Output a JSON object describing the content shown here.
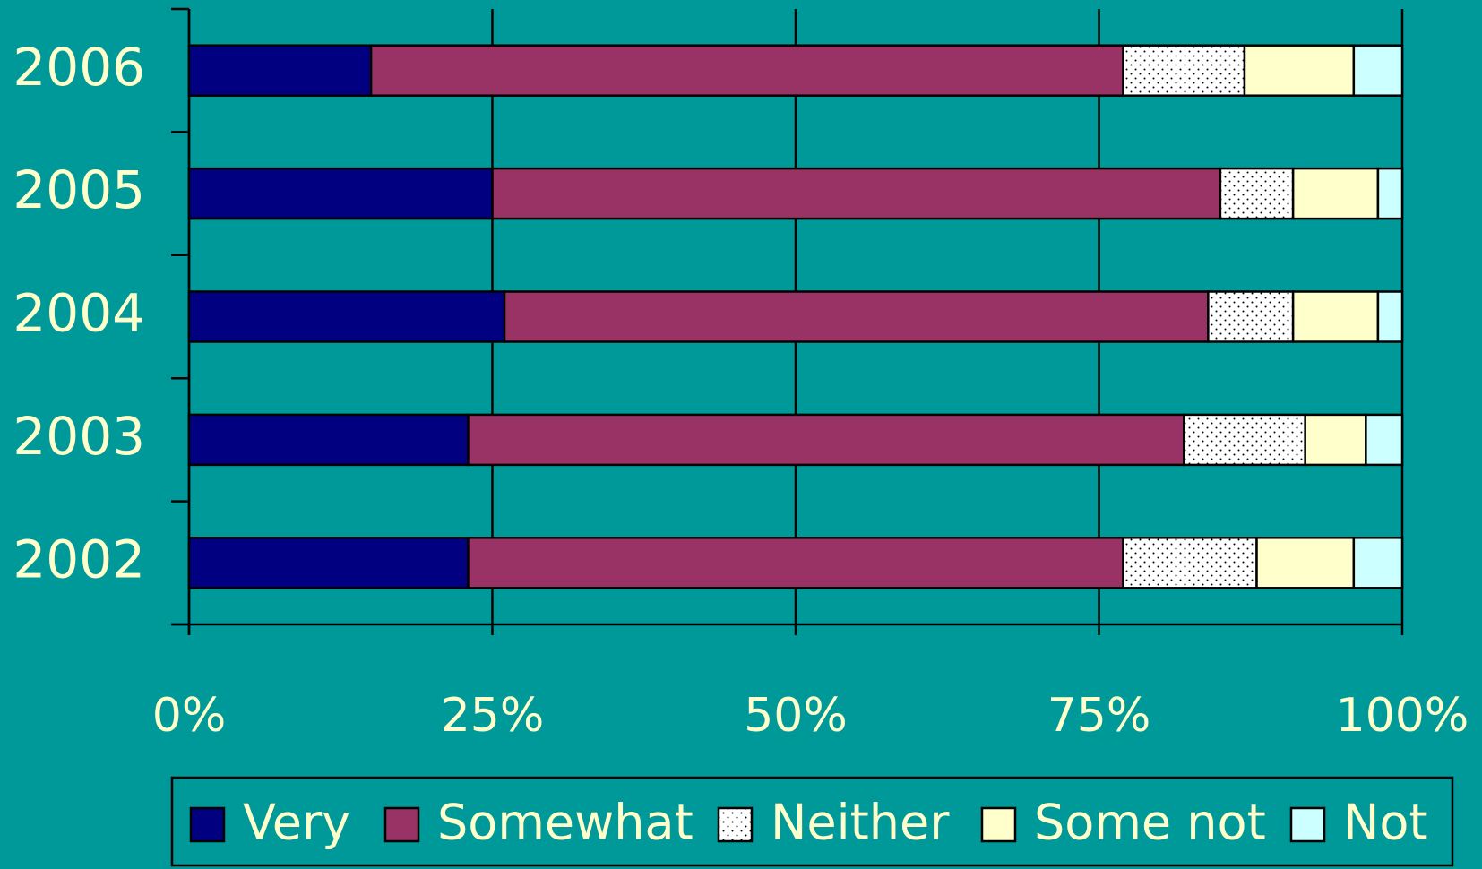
{
  "chart_data": {
    "type": "stacked-bar-horizontal",
    "categories": [
      "2006",
      "2005",
      "2004",
      "2003",
      "2002"
    ],
    "series": [
      {
        "name": "Very",
        "color": "#000080",
        "values": [
          15,
          25,
          26,
          23,
          23
        ]
      },
      {
        "name": "Somewhat",
        "color": "#993366",
        "values": [
          62,
          60,
          58,
          59,
          54
        ]
      },
      {
        "name": "Neither",
        "color": "#ffffff",
        "pattern": "dots",
        "values": [
          10,
          6,
          7,
          10,
          11
        ]
      },
      {
        "name": "Some not",
        "color": "#ffffcc",
        "values": [
          9,
          7,
          7,
          5,
          8
        ]
      },
      {
        "name": "Not",
        "color": "#ccffff",
        "values": [
          4,
          2,
          2,
          3,
          4
        ]
      }
    ],
    "xlim": [
      0,
      100
    ],
    "xticks": [
      {
        "value": 0,
        "label": "0%"
      },
      {
        "value": 25,
        "label": "25%"
      },
      {
        "value": 50,
        "label": "50%"
      },
      {
        "value": 75,
        "label": "75%"
      },
      {
        "value": 100,
        "label": "100%"
      }
    ],
    "grid": true,
    "legend": "bottom"
  }
}
